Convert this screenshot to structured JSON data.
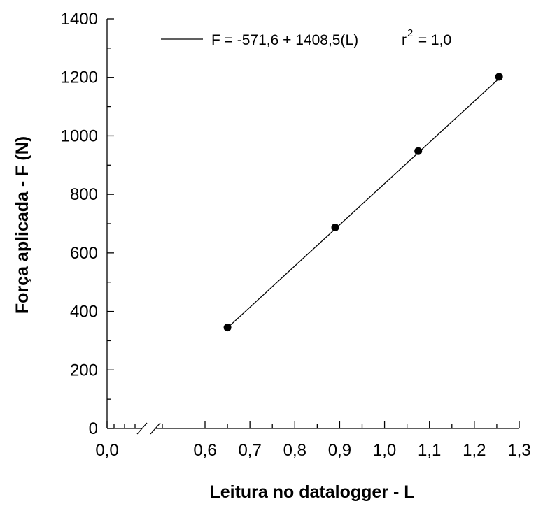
{
  "chart_data": {
    "type": "scatter",
    "xlabel": "Leitura no datalogger - L",
    "ylabel": "Força aplicada - F (N)",
    "xlim": [
      0.5,
      1.3
    ],
    "ylim": [
      0,
      1400
    ],
    "axis_break": {
      "between": [
        "0,0",
        "0,6"
      ]
    },
    "x_ticks": [
      {
        "label": "0,0"
      },
      {
        "label": "0,6",
        "value": 0.6
      },
      {
        "label": "0,7",
        "value": 0.7
      },
      {
        "label": "0,8",
        "value": 0.8
      },
      {
        "label": "0,9",
        "value": 0.9
      },
      {
        "label": "1,0",
        "value": 1.0
      },
      {
        "label": "1,1",
        "value": 1.1
      },
      {
        "label": "1,2",
        "value": 1.2
      },
      {
        "label": "1,3",
        "value": 1.3
      }
    ],
    "y_ticks": [
      {
        "label": "0",
        "value": 0
      },
      {
        "label": "200",
        "value": 200
      },
      {
        "label": "400",
        "value": 400
      },
      {
        "label": "600",
        "value": 600
      },
      {
        "label": "800",
        "value": 800
      },
      {
        "label": "1000",
        "value": 1000
      },
      {
        "label": "1200",
        "value": 1200
      },
      {
        "label": "1400",
        "value": 1400
      }
    ],
    "points": [
      {
        "x": 0.65,
        "y": 345
      },
      {
        "x": 0.89,
        "y": 687
      },
      {
        "x": 1.075,
        "y": 948
      },
      {
        "x": 1.255,
        "y": 1202
      }
    ],
    "fit_line": {
      "x_range": [
        0.65,
        1.255
      ],
      "intercept": -571.6,
      "slope": 1408.5
    },
    "legend": {
      "placement": "top-center",
      "equation": "F = -571,6 + 1408,5(L)",
      "r_label": "r",
      "r_superscript": "2",
      "r_value": " = 1,0"
    },
    "grid": false
  }
}
